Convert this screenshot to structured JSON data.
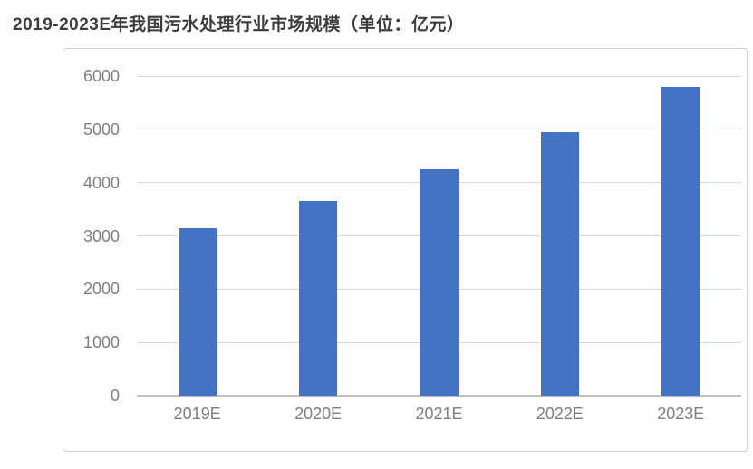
{
  "page": {
    "background_color": "#ffffff"
  },
  "chart_data": {
    "type": "bar",
    "title": "2019-2023E年我国污水处理行业市场规模（单位：亿元）",
    "categories": [
      "2019E",
      "2020E",
      "2021E",
      "2022E",
      "2023E"
    ],
    "values": [
      3150,
      3650,
      4250,
      4950,
      5800
    ],
    "xlabel": "",
    "ylabel": "",
    "ylim": [
      0,
      6000
    ],
    "yticks": [
      0,
      1000,
      2000,
      3000,
      4000,
      5000,
      6000
    ],
    "grid": true,
    "legend_position": "none",
    "bar_color": "#4472c4",
    "gridline_color": "#d9d9d9",
    "axis_line_color": "#bfbfbf",
    "tick_label_color": "#7f7f7f",
    "title_color": "#3d3d3d",
    "frame_border_color": "#d2d2d2"
  }
}
